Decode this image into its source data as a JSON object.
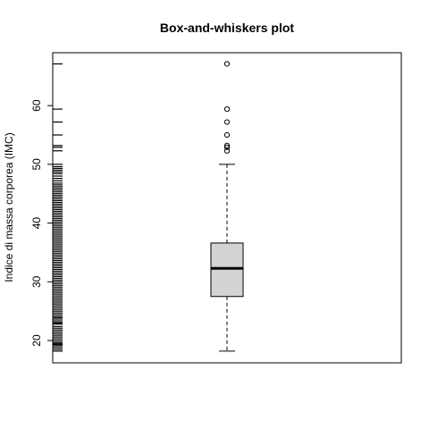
{
  "chart_data": {
    "type": "boxplot",
    "title": "Box-and-whiskers plot",
    "xlabel": "",
    "ylabel": "Indice di massa corporea (IMC)",
    "ylim": [
      16.2,
      69.0
    ],
    "yticks": [
      "20",
      "30",
      "40",
      "50",
      "60"
    ],
    "grid": false,
    "box": {
      "min": 18.2,
      "q1": 27.5,
      "median": 32.3,
      "q3": 36.6,
      "max": 50.0,
      "outliers": [
        52.3,
        52.9,
        53.2,
        55.0,
        57.2,
        59.4,
        67.1
      ],
      "fill": "#d3d3d3"
    },
    "rug": [
      18.2,
      18.5,
      18.8,
      19.1,
      19.3,
      19.5,
      19.7,
      20.0,
      20.3,
      20.6,
      20.9,
      21.2,
      21.5,
      21.8,
      22.1,
      22.4,
      22.8,
      23.0,
      23.2,
      23.5,
      23.8,
      24.0,
      24.3,
      24.6,
      24.9,
      25.2,
      25.5,
      25.8,
      26.1,
      26.4,
      26.7,
      27.0,
      27.3,
      27.6,
      27.9,
      28.2,
      28.5,
      28.8,
      29.1,
      29.4,
      29.7,
      30.0,
      30.3,
      30.6,
      30.9,
      31.2,
      31.5,
      31.8,
      32.1,
      32.4,
      32.7,
      33.0,
      33.3,
      33.6,
      33.9,
      34.2,
      34.5,
      34.8,
      35.1,
      35.4,
      35.7,
      36.0,
      36.3,
      36.6,
      36.9,
      37.2,
      37.5,
      37.8,
      38.1,
      38.4,
      38.7,
      39.0,
      39.3,
      39.6,
      39.9,
      40.2,
      40.5,
      40.8,
      41.1,
      41.4,
      41.7,
      42.0,
      42.3,
      42.6,
      42.9,
      43.2,
      43.5,
      43.8,
      44.1,
      44.4,
      44.7,
      45.0,
      45.3,
      45.6,
      45.9,
      46.2,
      46.5,
      46.8,
      47.2,
      47.6,
      48.0,
      48.4,
      48.7,
      49.0,
      49.3,
      49.6,
      50.0,
      52.3,
      52.9,
      53.2,
      55.0,
      57.2,
      59.4,
      67.1
    ]
  }
}
